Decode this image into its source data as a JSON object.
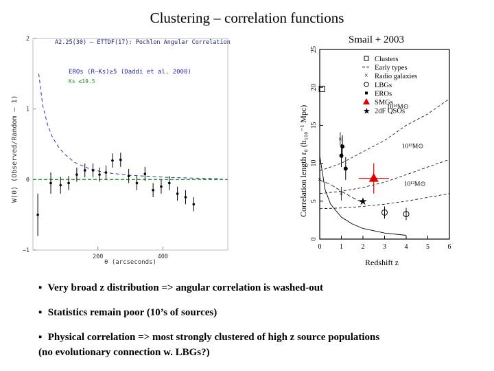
{
  "slide": {
    "title": "Clustering – correlation functions",
    "credit": "Smail + 2003",
    "bullets": [
      "Very broad z distribution => angular correlation is washed-out",
      "Statistics remain poor (10’s of sources)",
      "Physical correlation => most strongly clustered of high z source populations"
    ],
    "bullet3_line2": "(no evolutionary connection w. LBGs?)",
    "bullet_marker": "▪"
  },
  "colors": {
    "dark_blue": "#1a1a6e",
    "blue_curve": "#2a2ab0",
    "green": "#1c9a1c",
    "red": "#dd0000"
  },
  "chart_data": [
    {
      "type": "scatter",
      "title": "A2.25(30) – ETTDF(17): Pochlon Angular Correlation",
      "legend": [
        "EROs (R–Ks)≥5 (Daddi et al. 2000)",
        "Ks ≤19.5"
      ],
      "xlabel": "θ (arcseconds)",
      "ylabel": "W(θ) (Observed/Random – 1)",
      "xticks": [
        "200",
        "400"
      ],
      "xlim": [
        0,
        600
      ],
      "yticks": [
        "−1",
        "0",
        "1",
        "2"
      ],
      "ylim": [
        -1,
        2
      ],
      "points": [
        {
          "x": 15,
          "y": -0.5,
          "err": 0.3
        },
        {
          "x": 55,
          "y": -0.05,
          "err": 0.15
        },
        {
          "x": 85,
          "y": -0.08,
          "err": 0.12
        },
        {
          "x": 110,
          "y": -0.05,
          "err": 0.1
        },
        {
          "x": 135,
          "y": 0.07,
          "err": 0.1
        },
        {
          "x": 160,
          "y": 0.13,
          "err": 0.1
        },
        {
          "x": 185,
          "y": 0.13,
          "err": 0.1
        },
        {
          "x": 205,
          "y": 0.07,
          "err": 0.1
        },
        {
          "x": 225,
          "y": 0.1,
          "err": 0.1
        },
        {
          "x": 245,
          "y": 0.27,
          "err": 0.1
        },
        {
          "x": 270,
          "y": 0.28,
          "err": 0.1
        },
        {
          "x": 295,
          "y": 0.05,
          "err": 0.1
        },
        {
          "x": 320,
          "y": -0.05,
          "err": 0.1
        },
        {
          "x": 345,
          "y": 0.08,
          "err": 0.1
        },
        {
          "x": 370,
          "y": -0.15,
          "err": 0.1
        },
        {
          "x": 395,
          "y": -0.1,
          "err": 0.1
        },
        {
          "x": 420,
          "y": -0.05,
          "err": 0.1
        },
        {
          "x": 445,
          "y": -0.2,
          "err": 0.1
        },
        {
          "x": 470,
          "y": -0.25,
          "err": 0.1
        },
        {
          "x": 495,
          "y": -0.35,
          "err": 0.1
        }
      ],
      "model_curve": [
        [
          18,
          1.5
        ],
        [
          30,
          1.05
        ],
        [
          45,
          0.78
        ],
        [
          60,
          0.6
        ],
        [
          80,
          0.45
        ],
        [
          100,
          0.35
        ],
        [
          130,
          0.24
        ],
        [
          170,
          0.16
        ],
        [
          220,
          0.1
        ],
        [
          300,
          0.06
        ],
        [
          420,
          0.03
        ],
        [
          580,
          0.01
        ]
      ],
      "zero_line": 0
    },
    {
      "type": "scatter",
      "xlabel": "Redshift z",
      "ylabel": "Correlation length r₀ (h₁₀₀⁻¹ Mpc)",
      "xticks": [
        "0",
        "1",
        "2",
        "3",
        "4",
        "5",
        "6"
      ],
      "xlim": [
        0,
        6
      ],
      "yticks": [
        "0",
        "5",
        "10",
        "15",
        "20",
        "25"
      ],
      "ylim": [
        0,
        25
      ],
      "legend": [
        "Clusters",
        "Early types",
        "Radio galaxies",
        "LBGs",
        "EROs",
        "SMGs",
        "2dF QSOs"
      ],
      "mass_labels": [
        "10¹⁴M⊙",
        "10¹³M⊙",
        "10¹²M⊙"
      ],
      "clusters": [
        {
          "x": 0.1,
          "y": 19.8
        }
      ],
      "radio_galaxies": [
        {
          "x": 0.0,
          "y": 7.9
        },
        {
          "x": 0.95,
          "y": 13.2
        },
        {
          "x": 1.0,
          "y": 6.0
        }
      ],
      "lbgs": [
        {
          "x": 3.0,
          "y": 3.5
        },
        {
          "x": 4.0,
          "y": 3.3
        }
      ],
      "eros": [
        {
          "x": 1.05,
          "y": 12.2
        },
        {
          "x": 1.0,
          "y": 11.0
        },
        {
          "x": 1.2,
          "y": 9.3
        }
      ],
      "smgs": [
        {
          "x": 2.5,
          "y": 8.0,
          "xerr": 0.7,
          "yerr": 2.0
        }
      ],
      "qsos": [
        {
          "x": 2.0,
          "y": 5.0
        }
      ],
      "halo_curves": [
        {
          "label": "10¹⁴M⊙",
          "points": [
            [
              0,
              9
            ],
            [
              1,
              10
            ],
            [
              2,
              11.5
            ],
            [
              3,
              13
            ],
            [
              4,
              15
            ],
            [
              5,
              16.5
            ],
            [
              6,
              18.5
            ]
          ]
        },
        {
          "label": "10¹³M⊙",
          "points": [
            [
              0,
              6
            ],
            [
              1,
              6.3
            ],
            [
              2,
              6.8
            ],
            [
              3,
              7.5
            ],
            [
              4,
              8.5
            ],
            [
              5,
              9.5
            ],
            [
              6,
              10.5
            ]
          ]
        },
        {
          "label": "10¹²M⊙",
          "points": [
            [
              0,
              4
            ],
            [
              1,
              4.1
            ],
            [
              2,
              4.3
            ],
            [
              3,
              4.6
            ],
            [
              4,
              5
            ],
            [
              5,
              5.5
            ],
            [
              6,
              6
            ]
          ]
        }
      ],
      "early_type_curve": [
        [
          0,
          7.8
        ],
        [
          0.5,
          7.2
        ],
        [
          1,
          6.3
        ],
        [
          1.5,
          5.5
        ],
        [
          2,
          4.8
        ]
      ],
      "evolution_curve": [
        [
          0,
          11
        ],
        [
          0.25,
          6.5
        ],
        [
          0.5,
          4.6
        ],
        [
          1,
          2.9
        ],
        [
          1.5,
          2
        ],
        [
          2,
          1.4
        ],
        [
          3,
          0.8
        ],
        [
          4,
          0.5
        ]
      ]
    }
  ]
}
